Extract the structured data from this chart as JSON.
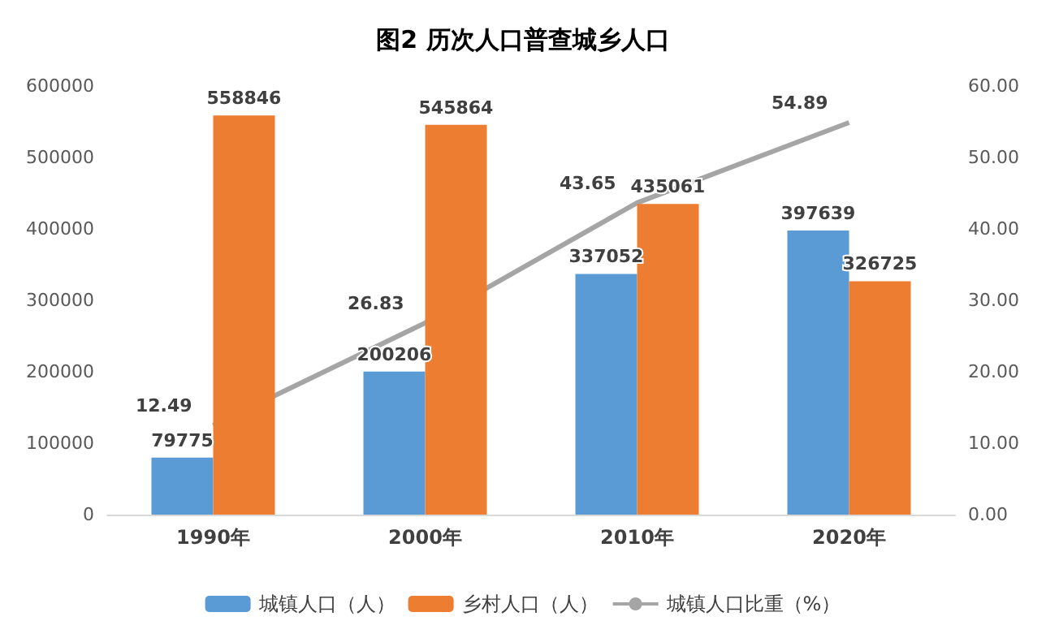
{
  "chart_data": {
    "type": "bar",
    "title": "图2 历次人口普查城乡人口",
    "categories": [
      "1990年",
      "2000年",
      "2010年",
      "2020年"
    ],
    "series": [
      {
        "name": "城镇人口（人）",
        "color": "#5b9bd5",
        "values": [
          79775,
          200206,
          337052,
          397639
        ]
      },
      {
        "name": "乡村人口（人）",
        "color": "#ed7d31",
        "values": [
          558846,
          545864,
          435061,
          326725
        ]
      },
      {
        "name": "城镇人口比重（%）",
        "type": "line",
        "axis": "y2",
        "color": "#a5a5a5",
        "values": [
          12.49,
          26.83,
          43.65,
          54.89
        ]
      }
    ],
    "ylim": [
      0,
      600000
    ],
    "yticks": [
      0,
      100000,
      200000,
      300000,
      400000,
      500000,
      600000
    ],
    "y2lim": [
      0,
      60
    ],
    "y2ticks": [
      {
        "value": 0,
        "label": "0.00"
      },
      {
        "value": 10,
        "label": "10.00"
      },
      {
        "value": 20,
        "label": "20.00"
      },
      {
        "value": 30,
        "label": "30.00"
      },
      {
        "value": 40,
        "label": "40.00"
      },
      {
        "value": 50,
        "label": "50.00"
      },
      {
        "value": 60,
        "label": "60.00"
      }
    ],
    "data_labels": true,
    "legend": "bottom",
    "grid": false,
    "marker": "none",
    "line_style": "solid"
  }
}
